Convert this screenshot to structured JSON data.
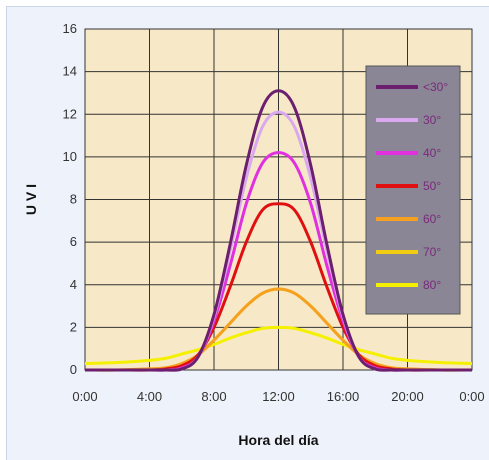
{
  "chart_data": {
    "type": "line",
    "xlabel": "Hora del día",
    "ylabel": "U V I",
    "x_tick_labels": [
      "0:00",
      "4:00",
      "8:00",
      "12:00",
      "16:00",
      "20:00",
      "0:00"
    ],
    "x_ticks_hours": [
      0,
      4,
      8,
      12,
      16,
      20,
      24
    ],
    "xlim": [
      0,
      24
    ],
    "ylim": [
      0,
      16
    ],
    "y_ticks": [
      0,
      2,
      4,
      6,
      8,
      10,
      12,
      14,
      16
    ],
    "grid": true,
    "legend_position": "top-right",
    "x": [
      0,
      2,
      4,
      5,
      6,
      7,
      8,
      9,
      10,
      11,
      12,
      13,
      14,
      15,
      16,
      17,
      18,
      19,
      20,
      22,
      24
    ],
    "series": [
      {
        "name": "<30°",
        "color": "#6b1f6e",
        "values": [
          0,
          0,
          0,
          0,
          0.05,
          0.6,
          2.6,
          5.9,
          9.6,
          12.3,
          13.1,
          12.3,
          9.6,
          5.9,
          2.6,
          0.6,
          0.05,
          0,
          0,
          0,
          0
        ]
      },
      {
        "name": "30°",
        "color": "#d9a8f0",
        "values": [
          0,
          0,
          0,
          0,
          0.05,
          0.6,
          2.5,
          5.6,
          9.0,
          11.4,
          12.1,
          11.4,
          9.0,
          5.6,
          2.5,
          0.6,
          0.05,
          0,
          0,
          0,
          0
        ]
      },
      {
        "name": "40°",
        "color": "#e030e0",
        "values": [
          0,
          0,
          0,
          0,
          0.1,
          0.6,
          2.3,
          4.9,
          7.8,
          9.7,
          10.2,
          9.7,
          7.8,
          4.9,
          2.3,
          0.6,
          0.1,
          0,
          0,
          0,
          0
        ]
      },
      {
        "name": "50°",
        "color": "#e01010",
        "values": [
          0,
          0,
          0,
          0.05,
          0.2,
          0.7,
          2.0,
          3.9,
          6.0,
          7.5,
          7.8,
          7.5,
          6.0,
          3.9,
          2.0,
          0.7,
          0.2,
          0.05,
          0,
          0,
          0
        ]
      },
      {
        "name": "60°",
        "color": "#f5a020",
        "values": [
          0,
          0,
          0.05,
          0.1,
          0.3,
          0.7,
          1.4,
          2.2,
          3.0,
          3.6,
          3.8,
          3.6,
          3.0,
          2.2,
          1.4,
          0.7,
          0.3,
          0.1,
          0.05,
          0,
          0
        ]
      },
      {
        "name": "70°",
        "color": "#f2cc10",
        "values": [
          0,
          0,
          0.05,
          0.1,
          0.3,
          0.7,
          1.4,
          2.2,
          3.0,
          3.6,
          3.8,
          3.6,
          3.0,
          2.2,
          1.4,
          0.7,
          0.3,
          0.1,
          0.05,
          0,
          0
        ]
      },
      {
        "name": "80°",
        "color": "#f5f000",
        "values": [
          0.3,
          0.35,
          0.45,
          0.55,
          0.75,
          0.95,
          1.2,
          1.5,
          1.75,
          1.95,
          2.0,
          1.95,
          1.75,
          1.5,
          1.2,
          0.95,
          0.75,
          0.55,
          0.45,
          0.35,
          0.3
        ]
      }
    ],
    "colors": {
      "plot_background": "#f7e9c8",
      "grid": "#333333",
      "legend_background": "#8a8696",
      "legend_text": "#7a2a7a"
    }
  }
}
